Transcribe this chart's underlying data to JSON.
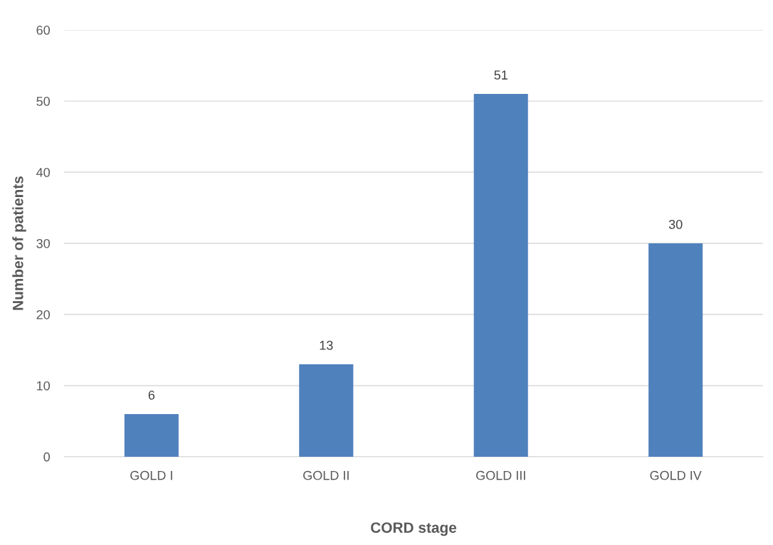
{
  "chart_data": {
    "type": "bar",
    "xlabel": "CORD stage",
    "ylabel": "Number of patients",
    "categories": [
      "GOLD I",
      "GOLD II",
      "GOLD III",
      "GOLD IV"
    ],
    "values": [
      6,
      13,
      51,
      30
    ],
    "color": "#4f81bd",
    "ylim": [
      0,
      60
    ],
    "yticks": [
      0,
      10,
      20,
      30,
      40,
      50,
      60
    ],
    "grid": "y",
    "data_labels": true,
    "legend": false
  }
}
